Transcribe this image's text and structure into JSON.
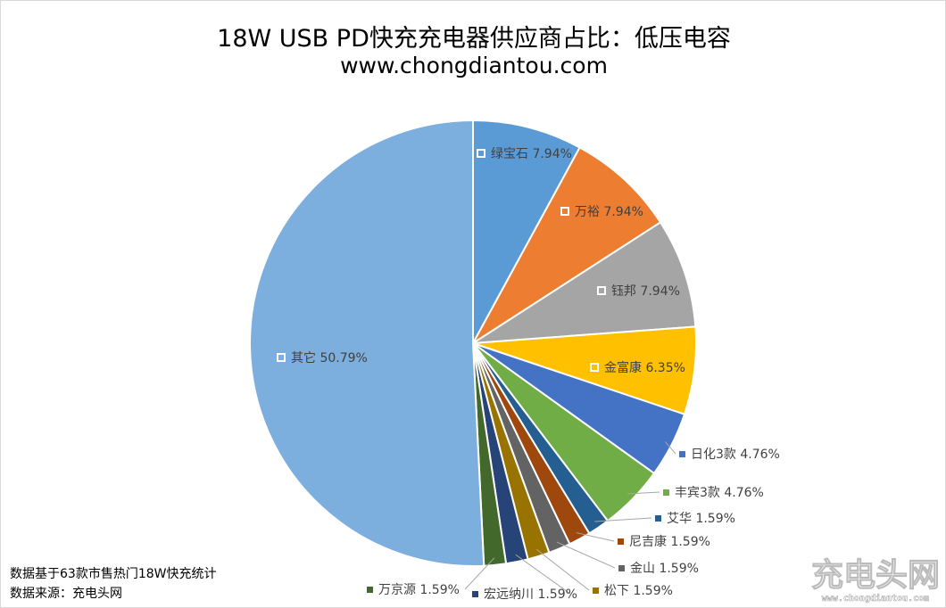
{
  "chart_data": {
    "type": "pie",
    "title": "18W USB PD快充充电器供应商占比：低压电容",
    "subtitle": "www.chongdiantou.com",
    "start": "top",
    "direction": "clockwise",
    "series": [
      {
        "label": "绿宝石",
        "value": 7.94,
        "text": "7.94%",
        "color": "#5B9BD5"
      },
      {
        "label": "万裕",
        "value": 7.94,
        "text": "7.94%",
        "color": "#ED7D31"
      },
      {
        "label": "钰邦",
        "value": 7.94,
        "text": "7.94%",
        "color": "#A5A5A5"
      },
      {
        "label": "金富康",
        "value": 6.35,
        "text": "6.35%",
        "color": "#FFC000"
      },
      {
        "label": "日化3款",
        "value": 4.76,
        "text": "4.76%",
        "color": "#4472C4"
      },
      {
        "label": "丰宾3款",
        "value": 4.76,
        "text": "4.76%",
        "color": "#70AD47"
      },
      {
        "label": "艾华",
        "value": 1.59,
        "text": "1.59%",
        "color": "#255E91"
      },
      {
        "label": "尼吉康",
        "value": 1.59,
        "text": "1.59%",
        "color": "#9E480E"
      },
      {
        "label": "金山",
        "value": 1.59,
        "text": "1.59%",
        "color": "#636363"
      },
      {
        "label": "松下",
        "value": 1.59,
        "text": "1.59%",
        "color": "#997300"
      },
      {
        "label": "宏远纳川",
        "value": 1.59,
        "text": "1.59%",
        "color": "#264478"
      },
      {
        "label": "万京源",
        "value": 1.59,
        "text": "1.59%",
        "color": "#43682B"
      },
      {
        "label": "其它",
        "value": 50.79,
        "text": "50.79%",
        "color": "#7CAFDD"
      }
    ]
  },
  "notes": {
    "line1": "数据基于63款市售热门18W快充统计",
    "line2": "数据来源：充电头网"
  },
  "watermark": {
    "text": "充电头网",
    "url": "www.chongdiantou.com"
  }
}
